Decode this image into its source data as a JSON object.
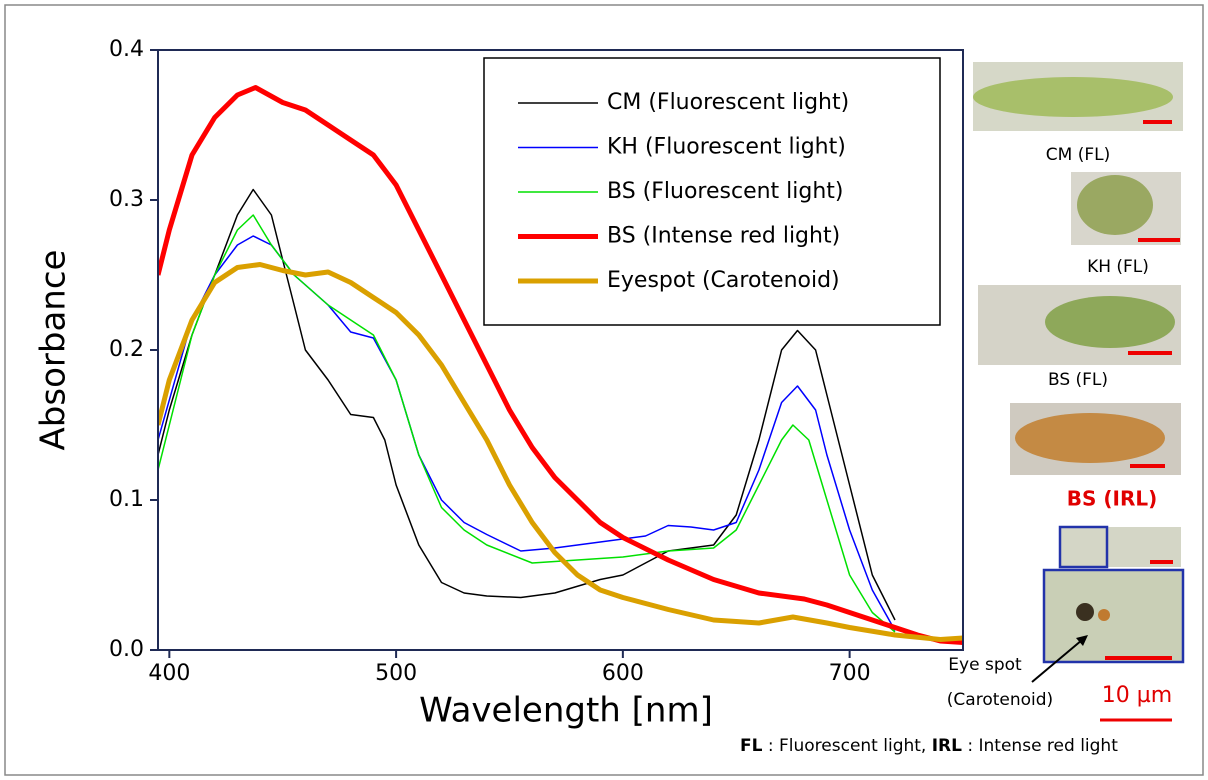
{
  "chart_data": {
    "type": "line",
    "xlabel": "Wavelength [nm]",
    "ylabel": "Absorbance",
    "xlim": [
      395,
      750
    ],
    "ylim": [
      0,
      0.4
    ],
    "xticks": [
      400,
      500,
      600,
      700
    ],
    "yticks": [
      {
        "value": 0,
        "label": "0.0"
      },
      0.1,
      0.2,
      0.3,
      0.4
    ],
    "legend": "upper right",
    "series": [
      {
        "name": "CM (Fluorescent light)",
        "color": "#000000",
        "width": 1.5,
        "x": [
          395,
          400,
          410,
          420,
          430,
          437,
          445,
          450,
          455,
          460,
          470,
          480,
          490,
          495,
          500,
          510,
          520,
          530,
          540,
          555,
          570,
          590,
          600,
          610,
          620,
          630,
          640,
          650,
          660,
          670,
          677,
          685,
          690,
          700,
          710,
          720
        ],
        "values": [
          0.13,
          0.16,
          0.21,
          0.25,
          0.29,
          0.307,
          0.29,
          0.26,
          0.23,
          0.2,
          0.18,
          0.157,
          0.155,
          0.14,
          0.11,
          0.07,
          0.045,
          0.038,
          0.036,
          0.035,
          0.038,
          0.047,
          0.05,
          0.058,
          0.066,
          0.068,
          0.07,
          0.09,
          0.14,
          0.2,
          0.213,
          0.2,
          0.17,
          0.11,
          0.05,
          0.02
        ]
      },
      {
        "name": "KH (Fluorescent light)",
        "color": "#0000ff",
        "width": 1.5,
        "x": [
          395,
          410,
          420,
          430,
          437,
          445,
          455,
          470,
          480,
          490,
          500,
          510,
          520,
          530,
          540,
          555,
          570,
          590,
          610,
          620,
          630,
          640,
          650,
          660,
          670,
          677,
          685,
          690,
          700,
          710,
          720
        ],
        "values": [
          0.14,
          0.22,
          0.25,
          0.27,
          0.276,
          0.27,
          0.25,
          0.23,
          0.212,
          0.208,
          0.18,
          0.13,
          0.1,
          0.085,
          0.077,
          0.066,
          0.068,
          0.072,
          0.076,
          0.083,
          0.082,
          0.08,
          0.085,
          0.12,
          0.165,
          0.176,
          0.16,
          0.13,
          0.08,
          0.04,
          0.013
        ]
      },
      {
        "name": "BS (Fluorescent light)",
        "color": "#00e000",
        "width": 1.5,
        "x": [
          395,
          410,
          420,
          430,
          437,
          445,
          455,
          470,
          483,
          490,
          500,
          510,
          520,
          530,
          540,
          560,
          580,
          600,
          620,
          640,
          650,
          660,
          670,
          675,
          682,
          690,
          700,
          710,
          720
        ],
        "values": [
          0.12,
          0.21,
          0.25,
          0.28,
          0.29,
          0.27,
          0.25,
          0.23,
          0.217,
          0.21,
          0.18,
          0.13,
          0.095,
          0.08,
          0.07,
          0.058,
          0.06,
          0.062,
          0.066,
          0.068,
          0.08,
          0.11,
          0.14,
          0.15,
          0.14,
          0.1,
          0.05,
          0.025,
          0.012
        ]
      },
      {
        "name": "BS (Intense red  light)",
        "color": "#ff0000",
        "width": 5,
        "x": [
          395,
          400,
          410,
          420,
          430,
          438,
          450,
          460,
          470,
          480,
          490,
          500,
          510,
          520,
          530,
          540,
          550,
          560,
          570,
          580,
          590,
          600,
          620,
          640,
          660,
          680,
          690,
          700,
          710,
          720,
          730,
          740,
          750
        ],
        "values": [
          0.25,
          0.28,
          0.33,
          0.355,
          0.37,
          0.375,
          0.365,
          0.36,
          0.35,
          0.34,
          0.33,
          0.31,
          0.28,
          0.25,
          0.22,
          0.19,
          0.16,
          0.135,
          0.115,
          0.1,
          0.085,
          0.075,
          0.06,
          0.047,
          0.038,
          0.034,
          0.03,
          0.025,
          0.02,
          0.015,
          0.01,
          0.006,
          0.005
        ]
      },
      {
        "name": "Eyespot (Carotenoid)",
        "color": "#daa000",
        "width": 5,
        "x": [
          395,
          400,
          410,
          420,
          430,
          440,
          450,
          460,
          470,
          480,
          490,
          500,
          510,
          520,
          530,
          540,
          550,
          560,
          570,
          580,
          590,
          600,
          620,
          640,
          660,
          675,
          690,
          700,
          720,
          740,
          750
        ],
        "values": [
          0.15,
          0.18,
          0.22,
          0.245,
          0.255,
          0.257,
          0.253,
          0.25,
          0.252,
          0.245,
          0.235,
          0.225,
          0.21,
          0.19,
          0.165,
          0.14,
          0.11,
          0.085,
          0.065,
          0.05,
          0.04,
          0.035,
          0.027,
          0.02,
          0.018,
          0.022,
          0.018,
          0.015,
          0.01,
          0.007,
          0.008
        ]
      }
    ],
    "annotations": {
      "cm": "CM (FL)",
      "kh": "KH (FL)",
      "bs": "BS (FL)",
      "bsirl": "BS (IRL)",
      "eyespot": "Eye spot",
      "carotenoid": "(Carotenoid)",
      "scale": "10 µm",
      "footnote": [
        "FL",
        " : Fluorescent light, ",
        "IRL",
        " : Intense red light"
      ]
    }
  }
}
